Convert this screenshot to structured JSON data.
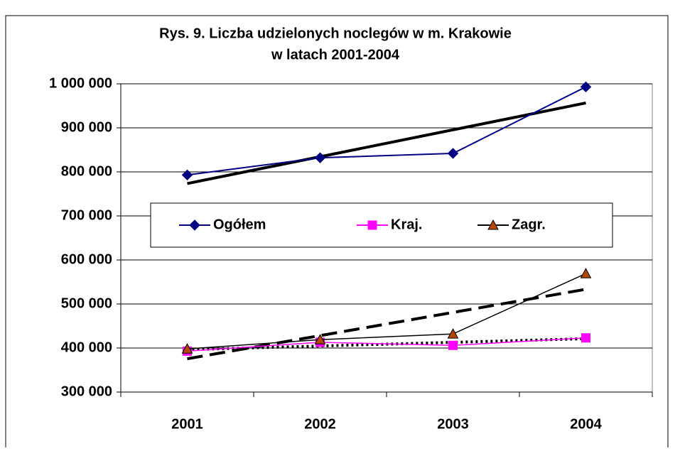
{
  "chart_data": {
    "type": "line",
    "title": [
      "Rys. 9. Liczba udzielonych noclegów w m. Krakowie",
      "w latach 2001-2004"
    ],
    "categories": [
      "2001",
      "2002",
      "2003",
      "2004"
    ],
    "series": [
      {
        "name": "Ogółem",
        "color": "#000080",
        "marker": "diamond",
        "marker_color": "#000080",
        "trendline": "solid",
        "values": [
          793000,
          832000,
          842000,
          993000
        ]
      },
      {
        "name": "Kraj.",
        "color": "#ff00ff",
        "marker": "square",
        "marker_color": "#ff00ff",
        "trendline": "dotted",
        "values": [
          393000,
          413000,
          406000,
          423000
        ]
      },
      {
        "name": "Zagr.",
        "color": "#000000",
        "marker": "triangle",
        "marker_color": "#b34700",
        "trendline": "dashed",
        "values": [
          398000,
          419000,
          432000,
          569000
        ]
      }
    ],
    "ylim": [
      300000,
      1000000
    ],
    "yticks": [
      {
        "value": 300000,
        "label": "300 000"
      },
      {
        "value": 400000,
        "label": "400 000"
      },
      {
        "value": 500000,
        "label": "500 000"
      },
      {
        "value": 600000,
        "label": "600 000"
      },
      {
        "value": 700000,
        "label": "700 000"
      },
      {
        "value": 800000,
        "label": "800 000"
      },
      {
        "value": 900000,
        "label": "900 000"
      },
      {
        "value": 1000000,
        "label": "1 000 000"
      }
    ],
    "grid": true,
    "legend": "center"
  }
}
